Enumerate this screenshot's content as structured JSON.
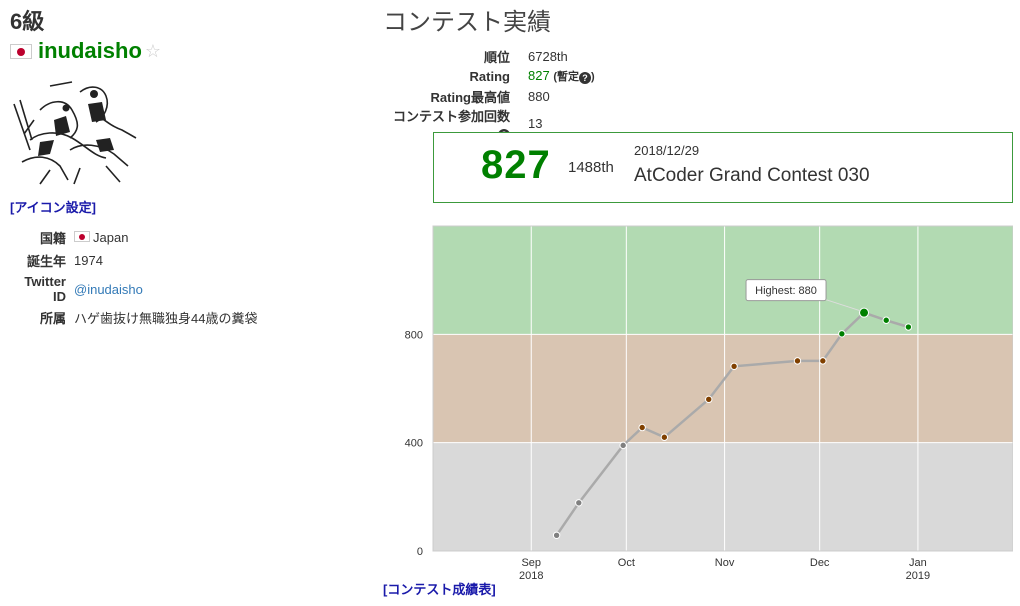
{
  "profile": {
    "rank_title": "6級",
    "username": "inudaisho",
    "icon_settings_label": "[アイコン設定]",
    "info": [
      {
        "key": "国籍",
        "value": "Japan",
        "flag": true
      },
      {
        "key": "誕生年",
        "value": "1974"
      },
      {
        "key": "Twitter ID",
        "value": "@inudaisho",
        "link": true
      },
      {
        "key": "所属",
        "value": "ハゲ歯抜け無職独身44歳の糞袋"
      }
    ]
  },
  "contest": {
    "title": "コンテスト実績",
    "stats": [
      {
        "key": "順位",
        "value": "6728th"
      },
      {
        "key": "Rating",
        "value": "827",
        "note": "(暫定",
        "note_end": ")"
      },
      {
        "key": "Rating最高値",
        "value": "880"
      },
      {
        "key": "コンテスト参加回数",
        "value": "13",
        "help": true
      }
    ],
    "status": {
      "rating": "827",
      "rank": "1488th",
      "date": "2018/12/29",
      "contest_name": "AtCoder Grand Contest 030"
    },
    "history_link": "[コンテスト成績表]"
  },
  "colors": {
    "green": "#008000",
    "brown": "#804000",
    "gray": "#808080",
    "band_green": "#b2dab2",
    "band_brown": "#d9c5b2",
    "band_gray": "#d9d9d9"
  },
  "chart_data": {
    "type": "line",
    "x_ticks": [
      {
        "date": "2018-09-01",
        "label": "Sep",
        "sub": "2018"
      },
      {
        "date": "2018-10-01",
        "label": "Oct",
        "sub": ""
      },
      {
        "date": "2018-11-01",
        "label": "Nov",
        "sub": ""
      },
      {
        "date": "2018-12-01",
        "label": "Dec",
        "sub": ""
      },
      {
        "date": "2019-01-01",
        "label": "Jan",
        "sub": "2019"
      }
    ],
    "y_ticks": [
      0,
      400,
      800
    ],
    "ylim": [
      0,
      1200
    ],
    "xlim": [
      "2018-08-01",
      "2019-01-31"
    ],
    "bands": [
      {
        "from": 0,
        "to": 400,
        "color": "#d9d9d9"
      },
      {
        "from": 400,
        "to": 800,
        "color": "#d9c5b2"
      },
      {
        "from": 800,
        "to": 1200,
        "color": "#b2dab2"
      }
    ],
    "series": [
      {
        "points": [
          {
            "x": "2018-09-09",
            "y": 58
          },
          {
            "x": "2018-09-16",
            "y": 178
          },
          {
            "x": "2018-09-30",
            "y": 390
          },
          {
            "x": "2018-10-06",
            "y": 456
          },
          {
            "x": "2018-10-13",
            "y": 420
          },
          {
            "x": "2018-10-27",
            "y": 560
          },
          {
            "x": "2018-11-04",
            "y": 682
          },
          {
            "x": "2018-11-24",
            "y": 702
          },
          {
            "x": "2018-12-02",
            "y": 702
          },
          {
            "x": "2018-12-08",
            "y": 802
          },
          {
            "x": "2018-12-15",
            "y": 880
          },
          {
            "x": "2018-12-22",
            "y": 852
          },
          {
            "x": "2018-12-29",
            "y": 827
          }
        ]
      }
    ],
    "highlight": {
      "index": 10,
      "label": "Highest: 880"
    }
  }
}
